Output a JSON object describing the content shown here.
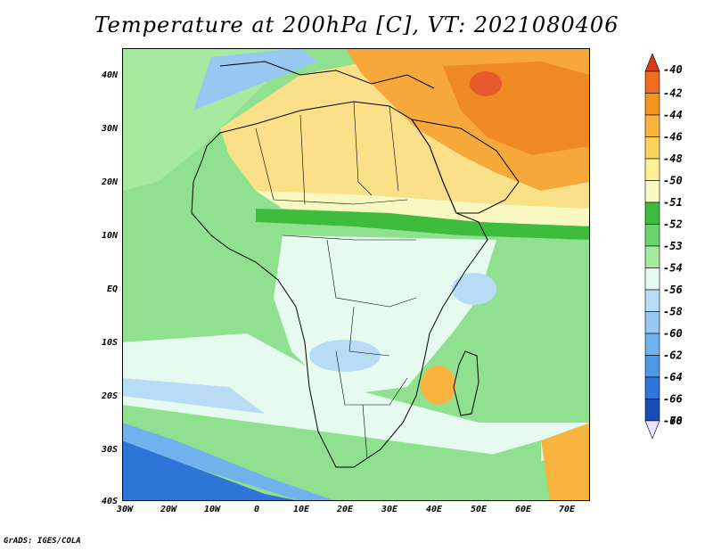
{
  "title": "Temperature at 200hPa [C], VT: 2021080406",
  "credit": "GrADS: IGES/COLA",
  "y_axis_labels": [
    "40N",
    "30N",
    "20N",
    "10N",
    "EQ",
    "10S",
    "20S",
    "30S",
    "40S"
  ],
  "x_axis_labels": [
    "30W",
    "20W",
    "10W",
    "0",
    "10E",
    "20E",
    "30E",
    "40E",
    "50E",
    "60E",
    "70E"
  ],
  "colorbar": {
    "labels": [
      "-40",
      "-42",
      "-44",
      "-46",
      "-48",
      "-50",
      "-51",
      "-52",
      "-53",
      "-54",
      "-56",
      "-58",
      "-60",
      "-62",
      "-64",
      "-66",
      "-68",
      "-70"
    ],
    "colors": [
      "#d83b1c",
      "#ef6e1e",
      "#f5951f",
      "#f8b43e",
      "#fbd35e",
      "#fdef94",
      "#f8f8c0",
      "#3ebc3e",
      "#6bd36b",
      "#a6eaa0",
      "#e6faf0",
      "#b8dcf6",
      "#96c8f2",
      "#71b2ee",
      "#4f98e8",
      "#2f74d8",
      "#1a4eb4",
      "#0b1f78"
    ]
  },
  "colors": {
    "ocean_green": "#8fe18f",
    "sahara_yellow": "#fbe08a",
    "middle_east_orange": "#f6a93a",
    "hot_spot_red": "#e45a2a",
    "central_africa_light": "#e6faf0",
    "south_blue": "#2f74d8"
  }
}
